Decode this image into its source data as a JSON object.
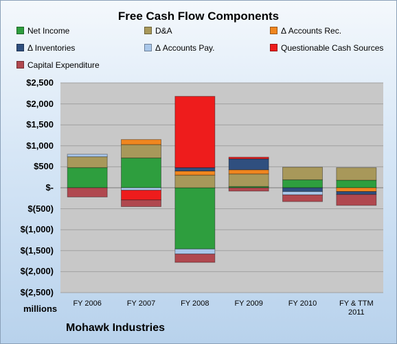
{
  "chart_data": {
    "type": "bar",
    "stacked": true,
    "title": "Free Cash Flow Components",
    "units_label": "millions",
    "company_label": "Mohawk Industries",
    "categories": [
      "FY 2006",
      "FY 2007",
      "FY 2008",
      "FY 2009",
      "FY 2010",
      "FY & TTM\n2011"
    ],
    "ylim": [
      -2500,
      2500
    ],
    "y_ticks": [
      2500,
      2000,
      1500,
      1000,
      500,
      0,
      -500,
      -1000,
      -1500,
      -2000,
      -2500
    ],
    "y_tick_labels": [
      "$2,500",
      "$2,000",
      "$1,500",
      "$1,000",
      "$500",
      "$-",
      "$(500)",
      "$(1,000)",
      "$(1,500)",
      "$(2,000)",
      "$(2,500)"
    ],
    "grid": true,
    "legend_position": "top",
    "series": [
      {
        "name": "Net Income",
        "color": "#2e9e3e",
        "values": [
          480,
          710,
          -1460,
          30,
          190,
          180
        ]
      },
      {
        "name": "D&A",
        "color": "#a8985a",
        "values": [
          260,
          320,
          300,
          300,
          300,
          300
        ]
      },
      {
        "name": "Δ Accounts Rec.",
        "color": "#f0861f",
        "values": [
          0,
          120,
          100,
          100,
          0,
          -90
        ]
      },
      {
        "name": "Δ Inventories",
        "color": "#2f4f7f",
        "values": [
          0,
          0,
          80,
          260,
          -90,
          -70
        ]
      },
      {
        "name": "Δ Accounts Pay.",
        "color": "#a9c7ea",
        "values": [
          60,
          -60,
          -120,
          0,
          -80,
          0
        ]
      },
      {
        "name": "Questionable Cash Sources",
        "color": "#ee1c1c",
        "values": [
          0,
          -230,
          1700,
          40,
          0,
          0
        ]
      },
      {
        "name": "Capital Expenditure",
        "color": "#b0484f",
        "values": [
          -220,
          -160,
          -200,
          -80,
          -160,
          -260
        ]
      }
    ]
  }
}
